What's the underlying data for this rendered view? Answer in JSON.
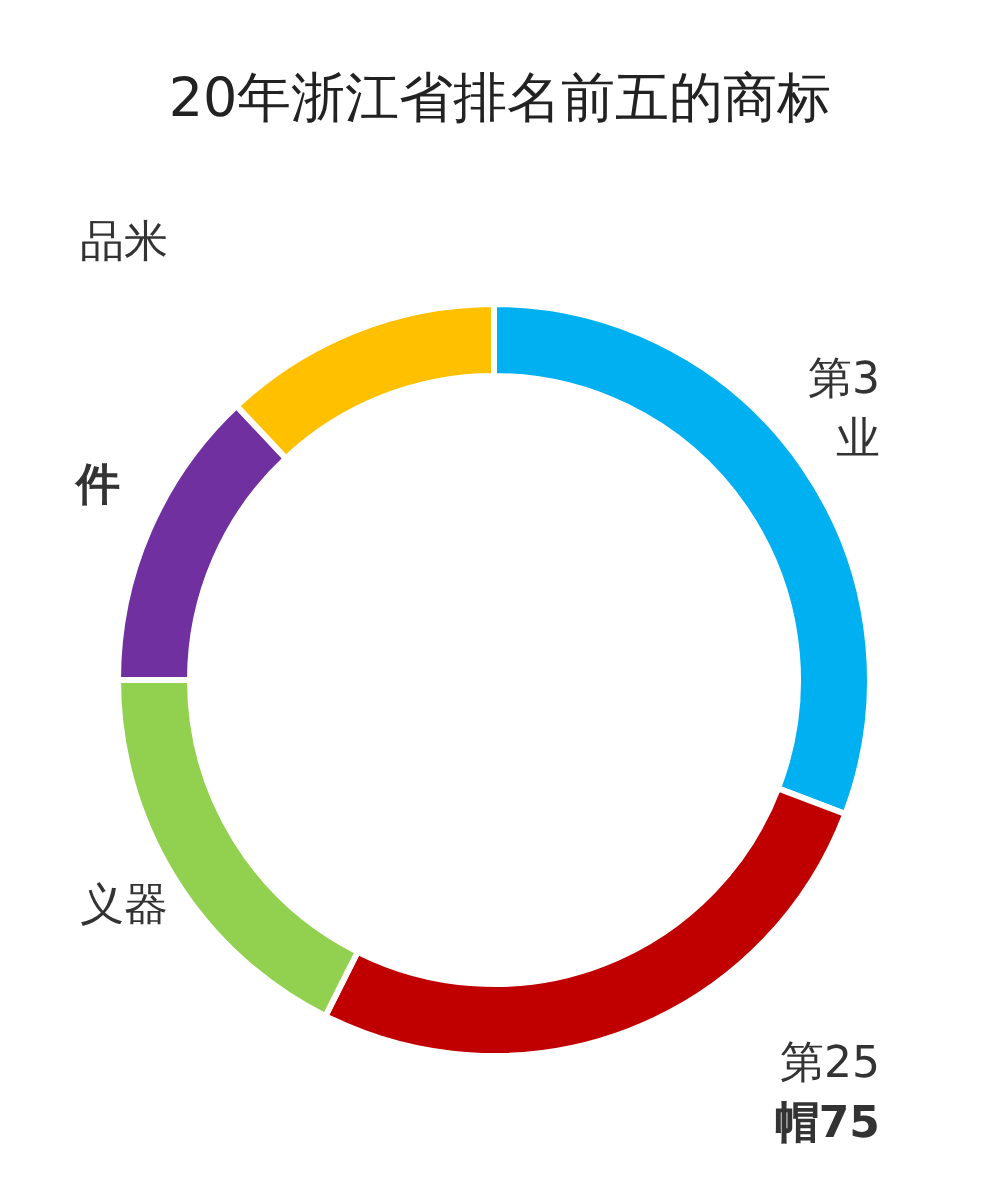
{
  "chart_data": {
    "type": "donut",
    "title": "20年浙江省排名前五的商标",
    "categories": [
      "第3\n业",
      "第25\n**帽75**",
      "义器",
      "**件**",
      "品米"
    ],
    "values": [
      30.8,
      26.6,
      17.6,
      13.0,
      12.0
    ],
    "colors": [
      "#00b0f0",
      "#c00000",
      "#92d050",
      "#7030a0",
      "#ffc000"
    ],
    "legend": false
  }
}
